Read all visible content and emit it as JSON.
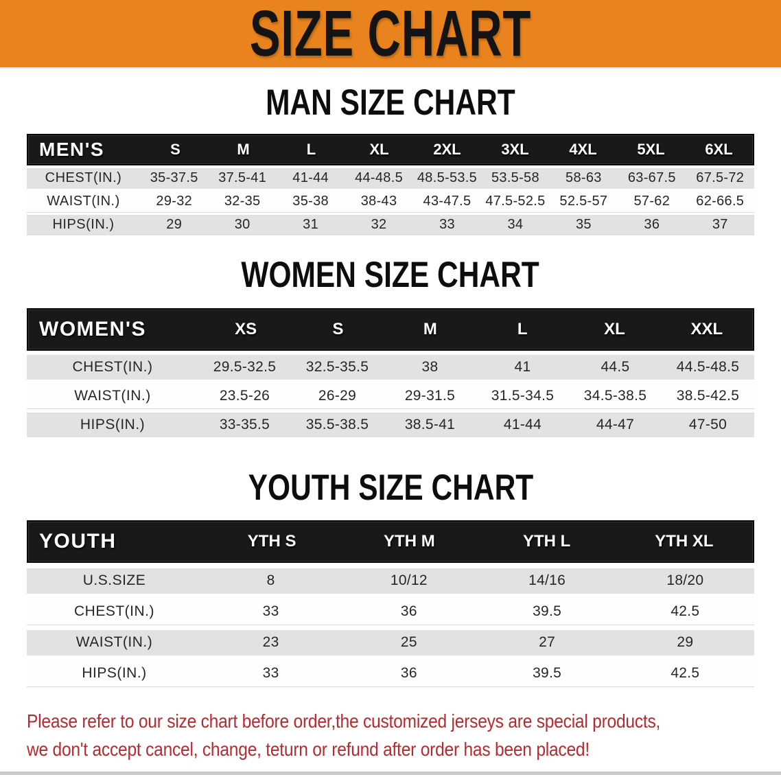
{
  "banner": {
    "title": "SIZE CHART"
  },
  "colors": {
    "banner_bg": "#E8831D",
    "title_text": "#141414",
    "header_bar": "#191919",
    "row_gray": "#E2E2E2",
    "row_white": "#FEFEFE",
    "note_red": "#B9292E"
  },
  "sections": [
    {
      "id": "men",
      "heading": "MAN SIZE CHART",
      "row_header": "MEN'S",
      "sizes": [
        "S",
        "M",
        "L",
        "XL",
        "2XL",
        "3XL",
        "4XL",
        "5XL",
        "6XL"
      ],
      "rows": [
        {
          "label": "CHEST(IN.)",
          "values": [
            "35-37.5",
            "37.5-41",
            "41-44",
            "44-48.5",
            "48.5-53.5",
            "53.5-58",
            "58-63",
            "63-67.5",
            "67.5-72"
          ]
        },
        {
          "label": "WAIST(IN.)",
          "values": [
            "29-32",
            "32-35",
            "35-38",
            "38-43",
            "43-47.5",
            "47.5-52.5",
            "52.5-57",
            "57-62",
            "62-66.5"
          ]
        },
        {
          "label": "HIPS(IN.)",
          "values": [
            "29",
            "30",
            "31",
            "32",
            "33",
            "34",
            "35",
            "36",
            "37"
          ]
        }
      ]
    },
    {
      "id": "women",
      "heading": "WOMEN SIZE CHART",
      "row_header": "WOMEN'S",
      "sizes": [
        "XS",
        "S",
        "M",
        "L",
        "XL",
        "XXL"
      ],
      "rows": [
        {
          "label": "CHEST(IN.)",
          "values": [
            "29.5-32.5",
            "32.5-35.5",
            "38",
            "41",
            "44.5",
            "44.5-48.5"
          ]
        },
        {
          "label": "WAIST(IN.)",
          "values": [
            "23.5-26",
            "26-29",
            "29-31.5",
            "31.5-34.5",
            "34.5-38.5",
            "38.5-42.5"
          ]
        },
        {
          "label": "HIPS(IN.)",
          "values": [
            "33-35.5",
            "35.5-38.5",
            "38.5-41",
            "41-44",
            "44-47",
            "47-50"
          ]
        }
      ]
    },
    {
      "id": "youth",
      "heading": "YOUTH SIZE CHART",
      "row_header": "YOUTH",
      "sizes": [
        "YTH S",
        "YTH M",
        "YTH L",
        "YTH XL"
      ],
      "rows": [
        {
          "label": "U.S.SIZE",
          "values": [
            "8",
            "10/12",
            "14/16",
            "18/20"
          ]
        },
        {
          "label": "CHEST(IN.)",
          "values": [
            "33",
            "36",
            "39.5",
            "42.5"
          ]
        },
        {
          "label": "WAIST(IN.)",
          "values": [
            "23",
            "25",
            "27",
            "29"
          ]
        },
        {
          "label": "HIPS(IN.)",
          "values": [
            "33",
            "36",
            "39.5",
            "42.5"
          ]
        }
      ]
    }
  ],
  "note": {
    "line1": "Please refer to our size chart before order,the customized jerseys are special products,",
    "line2": "we don't accept cancel, change, teturn or refund after order has been placed!"
  }
}
